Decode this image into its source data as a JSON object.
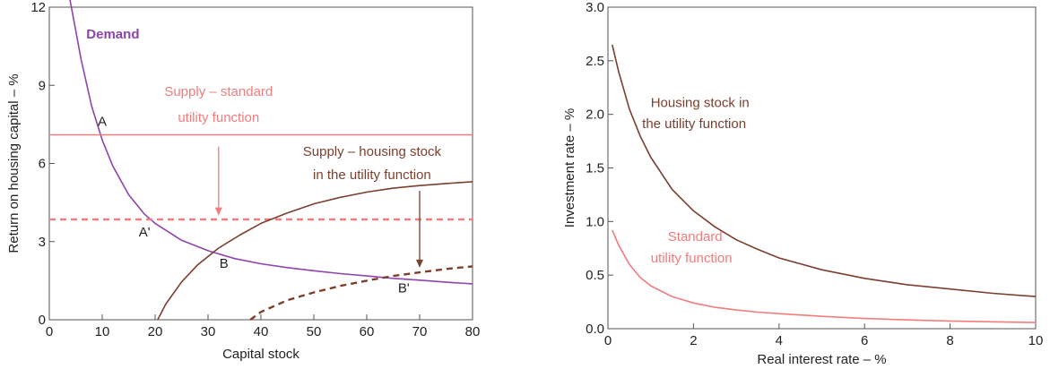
{
  "chart_data": [
    {
      "type": "line",
      "title": "",
      "xlabel": "Capital stock",
      "ylabel": "Return on housing capital – %",
      "xlim": [
        0,
        80
      ],
      "ylim": [
        0,
        12
      ],
      "xticks": [
        "0",
        "10",
        "20",
        "30",
        "40",
        "50",
        "60",
        "70",
        "80"
      ],
      "yticks": [
        "0",
        "3",
        "6",
        "9",
        "12"
      ],
      "grid": false,
      "colors": {
        "demand": "#8e44ad",
        "supply_standard": "#f47c7c",
        "supply_housing": "#7b3f2e"
      },
      "series": [
        {
          "name": "Demand",
          "style": "solid",
          "x": [
            3.8,
            5,
            6,
            8,
            10,
            12,
            15,
            18,
            20,
            25,
            30,
            35,
            40,
            45,
            50,
            55,
            60,
            65,
            70,
            75,
            80
          ],
          "y": [
            12.4,
            11.1,
            10.0,
            8.2,
            6.9,
            5.9,
            4.8,
            4.05,
            3.7,
            3.05,
            2.65,
            2.35,
            2.15,
            2.0,
            1.88,
            1.77,
            1.68,
            1.59,
            1.52,
            1.44,
            1.38
          ]
        },
        {
          "name": "Supply – standard utility function",
          "style": "solid",
          "x": [
            0,
            80
          ],
          "y": [
            7.1,
            7.1
          ]
        },
        {
          "name": "",
          "style": "dashed",
          "x": [
            0,
            80
          ],
          "y": [
            3.85,
            3.85
          ]
        },
        {
          "name": "Supply – housing stock in the utility function",
          "style": "solid",
          "x": [
            20.5,
            22,
            25,
            28,
            32,
            36,
            40,
            45,
            50,
            55,
            60,
            65,
            70,
            75,
            80
          ],
          "y": [
            0,
            0.6,
            1.45,
            2.1,
            2.75,
            3.25,
            3.7,
            4.1,
            4.45,
            4.7,
            4.9,
            5.05,
            5.15,
            5.23,
            5.3
          ]
        },
        {
          "name": "",
          "style": "dashed",
          "x": [
            38,
            40,
            45,
            50,
            55,
            60,
            65,
            70,
            75,
            80
          ],
          "y": [
            0,
            0.3,
            0.75,
            1.05,
            1.3,
            1.5,
            1.68,
            1.82,
            1.95,
            2.05
          ]
        }
      ],
      "annotations": [
        {
          "text": "Demand",
          "x": 7,
          "y": 10.8
        },
        {
          "text": "Supply – standard",
          "x": 32,
          "y": 8.6
        },
        {
          "text": "utility function",
          "x": 32,
          "y": 7.6
        },
        {
          "text": "Supply – housing stock",
          "x": 61,
          "y": 6.3
        },
        {
          "text": "in the utility function",
          "x": 61,
          "y": 5.4
        },
        {
          "text": "A",
          "x": 10,
          "y": 7.45
        },
        {
          "text": "A'",
          "x": 18,
          "y": 3.2
        },
        {
          "text": "B",
          "x": 33,
          "y": 2.0
        },
        {
          "text": "B'",
          "x": 67,
          "y": 1.05
        }
      ],
      "arrows": [
        {
          "x": 32,
          "y_from": 6.65,
          "y_to": 4.0,
          "color": "#f47c7c"
        },
        {
          "x": 70,
          "y_from": 4.95,
          "y_to": 2.0,
          "color": "#7b3f2e"
        }
      ]
    },
    {
      "type": "line",
      "title": "",
      "xlabel": "Real interest rate – %",
      "ylabel": "Investment rate – %",
      "xlim": [
        0,
        10
      ],
      "ylim": [
        0,
        3
      ],
      "xticks": [
        "0",
        "2",
        "4",
        "6",
        "8",
        "10"
      ],
      "yticks": [
        "0.0",
        "0.5",
        "1.0",
        "1.5",
        "2.0",
        "2.5",
        "3.0"
      ],
      "grid": false,
      "colors": {
        "housing": "#7b3f2e",
        "standard": "#f47c7c"
      },
      "series": [
        {
          "name": "Housing stock in the utility function",
          "x": [
            0.1,
            0.25,
            0.5,
            0.75,
            1,
            1.5,
            2,
            2.5,
            3,
            3.5,
            4,
            5,
            6,
            7,
            8,
            9,
            10
          ],
          "y": [
            2.65,
            2.4,
            2.05,
            1.8,
            1.6,
            1.3,
            1.1,
            0.95,
            0.83,
            0.74,
            0.66,
            0.55,
            0.47,
            0.41,
            0.37,
            0.33,
            0.3
          ]
        },
        {
          "name": "Standard utility function",
          "x": [
            0.1,
            0.25,
            0.5,
            0.75,
            1,
            1.5,
            2,
            2.5,
            3,
            3.5,
            4,
            5,
            6,
            7,
            8,
            9,
            10
          ],
          "y": [
            0.92,
            0.78,
            0.6,
            0.48,
            0.4,
            0.3,
            0.24,
            0.2,
            0.175,
            0.155,
            0.14,
            0.115,
            0.095,
            0.082,
            0.072,
            0.064,
            0.058
          ]
        }
      ],
      "annotations": [
        {
          "text": "Housing stock in",
          "x": 1.0,
          "y": 2.07
        },
        {
          "text": "the utility function",
          "x": 0.8,
          "y": 1.87
        },
        {
          "text": "Standard",
          "x": 1.4,
          "y": 0.82
        },
        {
          "text": "utility function",
          "x": 1.0,
          "y": 0.62
        }
      ]
    }
  ]
}
